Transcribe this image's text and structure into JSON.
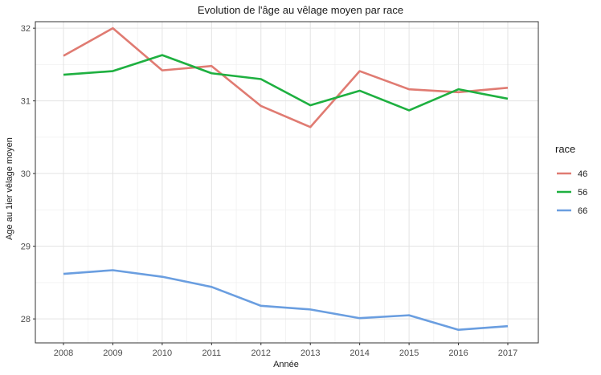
{
  "chart_data": {
    "type": "line",
    "title": "Evolution de l'âge au vêlage moyen par race",
    "xlabel": "Année",
    "ylabel": "Age au 1ier vêlage moyen",
    "x": [
      2008,
      2009,
      2010,
      2011,
      2012,
      2013,
      2014,
      2015,
      2016,
      2017
    ],
    "xlim": [
      2007.96,
      2017.19
    ],
    "ylim": [
      27.67,
      32.09
    ],
    "y_ticks": [
      28,
      29,
      30,
      31,
      32
    ],
    "grid": true,
    "legend": {
      "title": "race",
      "placement": "right"
    },
    "series": [
      {
        "name": "46",
        "color": "#e07b72",
        "values": [
          31.62,
          32.0,
          31.42,
          31.48,
          30.93,
          30.64,
          31.41,
          31.16,
          31.12,
          31.18
        ]
      },
      {
        "name": "56",
        "color": "#1eb040",
        "values": [
          31.36,
          31.41,
          31.63,
          31.38,
          31.3,
          30.94,
          31.14,
          30.87,
          31.16,
          31.03
        ]
      },
      {
        "name": "66",
        "color": "#6a9ee0",
        "values": [
          28.62,
          28.67,
          28.58,
          28.44,
          28.18,
          28.13,
          28.01,
          28.05,
          27.85,
          27.9
        ]
      }
    ]
  }
}
